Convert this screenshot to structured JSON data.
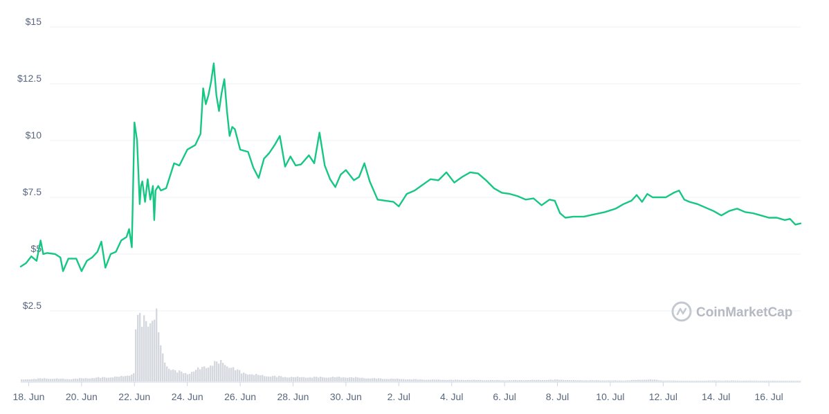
{
  "chart_data": {
    "type": "line",
    "title": "",
    "xlabel": "",
    "ylabel": "",
    "ylim": [
      2.5,
      15
    ],
    "y_ticks": [
      "$2.5",
      "$5",
      "$7.5",
      "$10",
      "$12.5",
      "$15"
    ],
    "y_tick_values": [
      2.5,
      5,
      7.5,
      10,
      12.5,
      15
    ],
    "x_tick_labels": [
      "18. Jun",
      "20. Jun",
      "22. Jun",
      "24. Jun",
      "26. Jun",
      "28. Jun",
      "30. Jun",
      "2. Jul",
      "4. Jul",
      "6. Jul",
      "8. Jul",
      "10. Jul",
      "12. Jul",
      "14. Jul",
      "16. Jul"
    ],
    "x_tick_days": [
      18,
      20,
      22,
      24,
      26,
      28,
      30,
      32,
      34,
      36,
      38,
      40,
      42,
      44,
      46
    ],
    "x_range_days": [
      17.7,
      47.2
    ],
    "grid": true,
    "line_color": "#16c784",
    "volume_color": "#d5d8df",
    "series": [
      {
        "values_x_days": [
          17.7,
          17.9,
          18.1,
          18.3,
          18.45,
          18.55,
          18.7,
          19.0,
          19.2,
          19.3,
          19.5,
          19.8,
          20.0,
          20.2,
          20.4,
          20.6,
          20.75,
          20.9,
          21.1,
          21.3,
          21.5,
          21.7,
          21.8,
          21.9,
          22.0,
          22.1,
          22.2,
          22.25,
          22.3,
          22.4,
          22.5,
          22.6,
          22.7,
          22.75,
          22.8,
          22.9,
          23.0,
          23.2,
          23.5,
          23.7,
          24.0,
          24.3,
          24.5,
          24.6,
          24.7,
          24.8,
          24.9,
          25.0,
          25.1,
          25.2,
          25.3,
          25.4,
          25.5,
          25.6,
          25.7,
          25.8,
          26.0,
          26.3,
          26.5,
          26.7,
          26.9,
          27.1,
          27.3,
          27.5,
          27.7,
          27.9,
          28.1,
          28.3,
          28.6,
          28.8,
          29.0,
          29.2,
          29.4,
          29.6,
          29.8,
          30.0,
          30.3,
          30.5,
          30.7,
          30.9,
          31.2,
          31.5,
          31.8,
          32.0,
          32.3,
          32.6,
          32.9,
          33.2,
          33.5,
          33.8,
          34.1,
          34.4,
          34.7,
          35.0,
          35.3,
          35.6,
          35.9,
          36.2,
          36.5,
          36.8,
          37.1,
          37.4,
          37.7,
          37.9,
          38.1,
          38.3,
          38.6,
          39.0,
          39.4,
          39.8,
          40.2,
          40.5,
          40.8,
          41.0,
          41.2,
          41.4,
          41.6,
          41.8,
          42.1,
          42.4,
          42.6,
          42.8,
          43.0,
          43.3,
          43.6,
          43.9,
          44.2,
          44.5,
          44.8,
          45.1,
          45.4,
          45.7,
          46.0,
          46.3,
          46.6,
          46.8,
          47.0,
          47.2
        ],
        "values_y": [
          4.45,
          4.6,
          4.9,
          4.7,
          5.6,
          5.0,
          5.05,
          5.0,
          4.85,
          4.25,
          4.8,
          4.8,
          4.25,
          4.7,
          4.85,
          5.1,
          5.55,
          4.4,
          5.0,
          5.1,
          5.6,
          5.75,
          6.1,
          5.3,
          10.8,
          10.0,
          7.2,
          8.0,
          8.2,
          7.3,
          8.3,
          7.4,
          8.0,
          6.5,
          7.8,
          8.0,
          7.8,
          7.9,
          9.0,
          8.9,
          9.6,
          9.8,
          10.3,
          12.3,
          11.6,
          12.0,
          12.6,
          13.4,
          12.0,
          11.3,
          12.1,
          12.7,
          11.3,
          10.2,
          10.6,
          10.5,
          9.6,
          9.5,
          8.8,
          8.35,
          9.2,
          9.45,
          9.8,
          10.2,
          8.85,
          9.3,
          8.9,
          8.95,
          9.35,
          9.0,
          10.35,
          8.9,
          8.3,
          7.95,
          8.5,
          8.7,
          8.25,
          8.4,
          9.0,
          8.2,
          7.4,
          7.35,
          7.3,
          7.1,
          7.65,
          7.8,
          8.05,
          8.3,
          8.25,
          8.6,
          8.15,
          8.4,
          8.6,
          8.55,
          8.25,
          7.9,
          7.7,
          7.65,
          7.55,
          7.4,
          7.45,
          7.15,
          7.4,
          7.35,
          6.8,
          6.6,
          6.65,
          6.65,
          6.75,
          6.85,
          7.0,
          7.2,
          7.35,
          7.6,
          7.3,
          7.65,
          7.5,
          7.5,
          7.5,
          7.7,
          7.8,
          7.4,
          7.3,
          7.2,
          7.05,
          6.9,
          6.7,
          6.9,
          7.0,
          6.85,
          6.8,
          6.7,
          6.6,
          6.6,
          6.5,
          6.55,
          6.3,
          6.35
        ]
      }
    ],
    "volume": {
      "x_days": [
        17.7,
        18.5,
        19.5,
        20.5,
        21.0,
        21.5,
        21.8,
        21.95,
        22.0,
        22.2,
        22.4,
        22.6,
        22.8,
        23.0,
        23.2,
        23.5,
        24.0,
        24.5,
        25.0,
        25.3,
        25.6,
        26.0,
        26.5,
        27.0,
        28.0,
        29.0,
        30.0,
        31.0,
        32.0,
        33.0,
        36.0,
        37.5,
        38.0,
        38.5,
        39.0,
        40.5,
        41.2,
        41.6,
        42.0,
        43.0,
        44.0,
        47.2
      ],
      "values_rel": [
        0.03,
        0.05,
        0.04,
        0.06,
        0.07,
        0.08,
        0.11,
        0.13,
        0.95,
        1.0,
        1.02,
        1.03,
        1.05,
        0.45,
        0.26,
        0.17,
        0.13,
        0.22,
        0.3,
        0.31,
        0.24,
        0.15,
        0.11,
        0.09,
        0.07,
        0.07,
        0.07,
        0.05,
        0.04,
        0.03,
        0.02,
        0.025,
        0.03,
        0.02,
        0.02,
        0.015,
        0.03,
        0.03,
        0.015,
        0.01,
        0.015,
        0.01
      ]
    },
    "watermark": "CoinMarketCap"
  }
}
